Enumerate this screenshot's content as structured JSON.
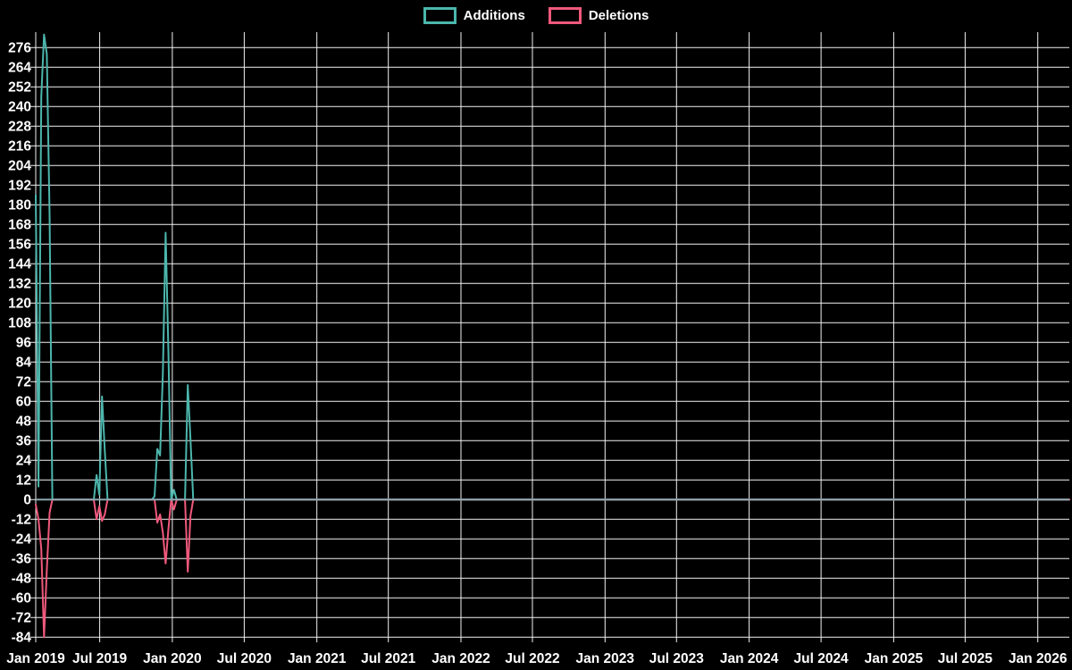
{
  "legend": {
    "items": [
      {
        "id": "additions",
        "label": "Additions",
        "color": "#4cb6ac"
      },
      {
        "id": "deletions",
        "label": "Deletions",
        "color": "#f0597c"
      }
    ]
  },
  "chart_data": {
    "type": "line",
    "title": "",
    "legend_position": "top-center",
    "grid": true,
    "background_color": "#000000",
    "grid_color": "#f2f2f2",
    "text_color": "#ffffff",
    "zero_line_color": "#8ba7b0",
    "x_unit": "week",
    "x_start": "2019-01-20",
    "weeks_total": 375,
    "x_ticks": [
      "Jan 2019",
      "Jul 2019",
      "Jan 2020",
      "Jul 2020",
      "Jan 2021",
      "Jul 2021",
      "Jan 2022",
      "Jul 2022",
      "Jan 2023",
      "Jul 2023",
      "Jan 2024",
      "Jul 2024",
      "Jan 2025",
      "Jul 2025",
      "Jan 2026"
    ],
    "y_ticks": [
      276,
      264,
      252,
      240,
      228,
      216,
      204,
      192,
      180,
      168,
      156,
      144,
      132,
      120,
      108,
      96,
      84,
      72,
      60,
      48,
      36,
      24,
      12,
      0,
      -12,
      -24,
      -36,
      -48,
      -60,
      -72,
      -84
    ],
    "ylim": [
      -84,
      284
    ],
    "series": [
      {
        "name": "Additions",
        "color": "#4cb6ac",
        "default": 0,
        "spikes": {
          "0": 186,
          "1": 8,
          "2": 246,
          "3": 284,
          "4": 272,
          "5": 174,
          "22": 15,
          "23": 3,
          "24": 63,
          "25": 30,
          "43": 2,
          "44": 31,
          "45": 27,
          "46": 77,
          "47": 163,
          "48": 91,
          "50": 6,
          "55": 70,
          "56": 37
        }
      },
      {
        "name": "Deletions",
        "color": "#f0597c",
        "default": 0,
        "spikes": {
          "0": -3,
          "1": -12,
          "2": -30,
          "3": -84,
          "4": -43,
          "5": -8,
          "22": -12,
          "23": -4,
          "24": -13,
          "25": -9,
          "44": -14,
          "45": -9,
          "46": -20,
          "47": -39,
          "48": -18,
          "50": -6,
          "55": -44,
          "56": -10
        }
      }
    ]
  }
}
